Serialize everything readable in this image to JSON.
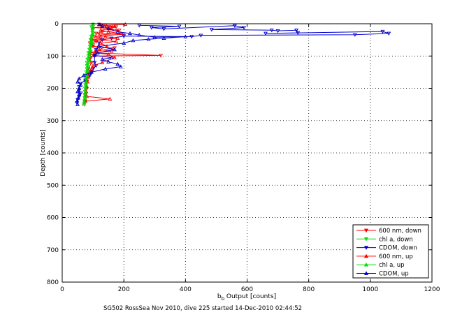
{
  "chart_data": {
    "type": "scatter",
    "title": "",
    "xlabel_main": "b",
    "xlabel_sub": "b",
    "xlabel_rest": " Output [counts]",
    "ylabel": "Depth [counts]",
    "caption": "SG502 RossSea Nov 2010, dive 225 started 14-Dec-2010 02:44:52",
    "xlim": [
      0,
      1200
    ],
    "ylim": [
      0,
      800
    ],
    "y_reversed": true,
    "xticks": [
      0,
      200,
      400,
      600,
      800,
      1000,
      1200
    ],
    "yticks": [
      0,
      100,
      200,
      300,
      400,
      500,
      600,
      700,
      800
    ],
    "xtick_labels": [
      "0",
      "200",
      "400",
      "600",
      "800",
      "1000",
      "1200"
    ],
    "ytick_labels": [
      "0",
      "100",
      "200",
      "300",
      "400",
      "500",
      "600",
      "700",
      "800"
    ],
    "grid": true,
    "grid_style": "dotted",
    "legend_position": "bottom-right",
    "series": [
      {
        "name": "600 nm, down",
        "color": "#ff0000",
        "marker": "triangle-down",
        "points": [
          [
            120,
            2
          ],
          [
            140,
            5
          ],
          [
            160,
            8
          ],
          [
            175,
            10
          ],
          [
            150,
            15
          ],
          [
            185,
            20
          ],
          [
            130,
            25
          ],
          [
            110,
            30
          ],
          [
            200,
            32
          ],
          [
            105,
            40
          ],
          [
            125,
            45
          ],
          [
            95,
            50
          ],
          [
            110,
            55
          ],
          [
            90,
            60
          ],
          [
            100,
            65
          ],
          [
            100,
            70
          ],
          [
            170,
            75
          ],
          [
            110,
            85
          ],
          [
            90,
            90
          ],
          [
            320,
            98
          ],
          [
            95,
            100
          ],
          [
            90,
            110
          ],
          [
            95,
            120
          ],
          [
            85,
            140
          ],
          [
            80,
            160
          ],
          [
            80,
            180
          ],
          [
            78,
            200
          ],
          [
            75,
            220
          ],
          [
            75,
            240
          ]
        ]
      },
      {
        "name": "chl a, down",
        "color": "#00dd00",
        "marker": "triangle-down",
        "points": [
          [
            100,
            2
          ],
          [
            95,
            10
          ],
          [
            98,
            20
          ],
          [
            100,
            30
          ],
          [
            95,
            40
          ],
          [
            92,
            50
          ],
          [
            95,
            60
          ],
          [
            90,
            70
          ],
          [
            88,
            80
          ],
          [
            85,
            90
          ],
          [
            85,
            100
          ],
          [
            82,
            110
          ],
          [
            80,
            120
          ],
          [
            80,
            130
          ],
          [
            80,
            140
          ],
          [
            78,
            150
          ],
          [
            78,
            160
          ],
          [
            76,
            170
          ],
          [
            75,
            180
          ],
          [
            75,
            190
          ],
          [
            74,
            200
          ],
          [
            74,
            210
          ],
          [
            73,
            220
          ],
          [
            73,
            230
          ],
          [
            72,
            240
          ],
          [
            72,
            250
          ]
        ]
      },
      {
        "name": "CDOM, down",
        "color": "#0000cc",
        "marker": "triangle-down",
        "points": [
          [
            250,
            5
          ],
          [
            380,
            8
          ],
          [
            290,
            12
          ],
          [
            330,
            16
          ],
          [
            560,
            6
          ],
          [
            590,
            12
          ],
          [
            485,
            18
          ],
          [
            680,
            20
          ],
          [
            700,
            22
          ],
          [
            760,
            20
          ],
          [
            765,
            28
          ],
          [
            660,
            30
          ],
          [
            1040,
            24
          ],
          [
            1060,
            30
          ],
          [
            950,
            34
          ],
          [
            450,
            36
          ],
          [
            420,
            40
          ],
          [
            200,
            38
          ],
          [
            160,
            45
          ],
          [
            130,
            50
          ],
          [
            120,
            60
          ],
          [
            110,
            80
          ],
          [
            105,
            100
          ],
          [
            105,
            120
          ],
          [
            110,
            130
          ],
          [
            100,
            140
          ],
          [
            95,
            150
          ],
          [
            90,
            160
          ],
          [
            75,
            175
          ],
          [
            60,
            185
          ],
          [
            55,
            195
          ],
          [
            55,
            205
          ],
          [
            60,
            215
          ],
          [
            55,
            225
          ],
          [
            50,
            235
          ],
          [
            48,
            245
          ]
        ]
      },
      {
        "name": "600 nm, up",
        "color": "#ff0000",
        "marker": "triangle-up",
        "points": [
          [
            70,
            248
          ],
          [
            75,
            240
          ],
          [
            155,
            233
          ],
          [
            80,
            225
          ],
          [
            78,
            210
          ],
          [
            80,
            195
          ],
          [
            82,
            180
          ],
          [
            85,
            165
          ],
          [
            88,
            150
          ],
          [
            95,
            140
          ],
          [
            100,
            130
          ],
          [
            130,
            120
          ],
          [
            170,
            105
          ],
          [
            150,
            95
          ],
          [
            105,
            90
          ],
          [
            160,
            85
          ],
          [
            120,
            80
          ],
          [
            145,
            70
          ],
          [
            125,
            60
          ],
          [
            175,
            55
          ],
          [
            110,
            50
          ],
          [
            180,
            45
          ],
          [
            140,
            40
          ],
          [
            120,
            35
          ],
          [
            190,
            30
          ],
          [
            150,
            25
          ],
          [
            125,
            20
          ],
          [
            160,
            15
          ],
          [
            100,
            12
          ],
          [
            170,
            8
          ],
          [
            130,
            5
          ],
          [
            205,
            2
          ]
        ]
      },
      {
        "name": "chl a, up",
        "color": "#00dd00",
        "marker": "triangle-up",
        "points": [
          [
            70,
            248
          ],
          [
            72,
            240
          ],
          [
            74,
            230
          ],
          [
            75,
            220
          ],
          [
            76,
            210
          ],
          [
            77,
            200
          ],
          [
            78,
            190
          ],
          [
            78,
            180
          ],
          [
            80,
            170
          ],
          [
            80,
            160
          ],
          [
            82,
            150
          ],
          [
            83,
            140
          ],
          [
            84,
            130
          ],
          [
            86,
            120
          ],
          [
            88,
            110
          ],
          [
            88,
            100
          ],
          [
            90,
            90
          ],
          [
            92,
            80
          ],
          [
            92,
            70
          ],
          [
            94,
            60
          ],
          [
            95,
            50
          ],
          [
            96,
            40
          ],
          [
            98,
            30
          ],
          [
            98,
            20
          ],
          [
            100,
            10
          ],
          [
            100,
            2
          ]
        ]
      },
      {
        "name": "CDOM, up",
        "color": "#0000cc",
        "marker": "triangle-up",
        "points": [
          [
            50,
            250
          ],
          [
            48,
            240
          ],
          [
            52,
            230
          ],
          [
            55,
            220
          ],
          [
            50,
            210
          ],
          [
            55,
            200
          ],
          [
            60,
            190
          ],
          [
            50,
            180
          ],
          [
            55,
            170
          ],
          [
            70,
            160
          ],
          [
            95,
            150
          ],
          [
            140,
            140
          ],
          [
            190,
            133
          ],
          [
            180,
            125
          ],
          [
            150,
            118
          ],
          [
            130,
            110
          ],
          [
            160,
            105
          ],
          [
            105,
            98
          ],
          [
            115,
            90
          ],
          [
            170,
            80
          ],
          [
            120,
            70
          ],
          [
            200,
            60
          ],
          [
            230,
            52
          ],
          [
            280,
            48
          ],
          [
            330,
            45
          ],
          [
            400,
            40
          ],
          [
            300,
            42
          ],
          [
            250,
            35
          ],
          [
            220,
            30
          ],
          [
            180,
            25
          ],
          [
            150,
            15
          ],
          [
            130,
            8
          ],
          [
            120,
            2
          ]
        ]
      }
    ]
  }
}
